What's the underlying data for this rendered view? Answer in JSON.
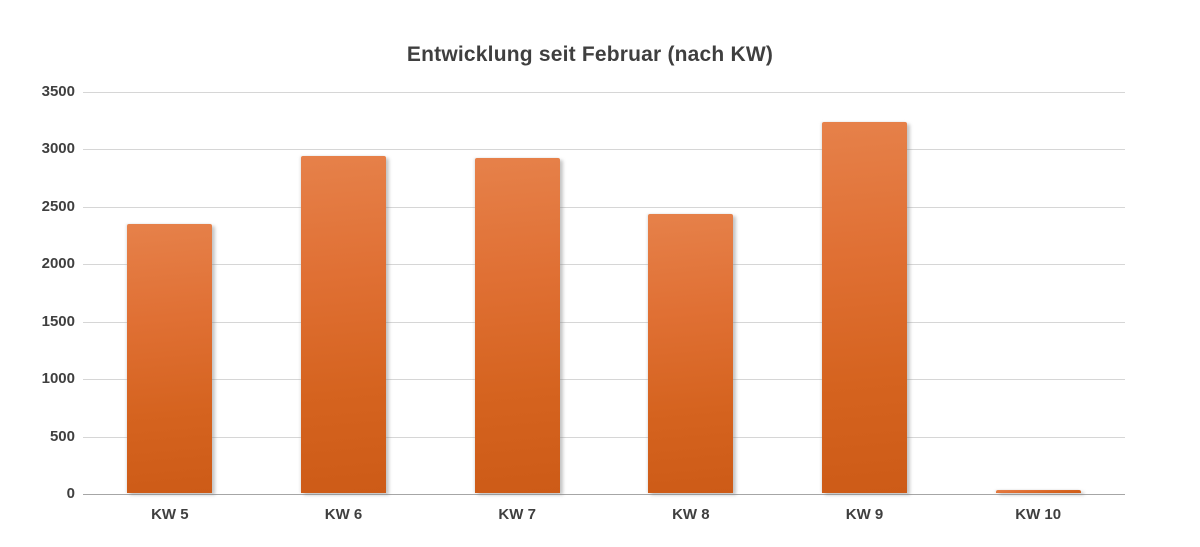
{
  "chart_data": {
    "type": "bar",
    "title": "Entwicklung seit Februar (nach KW)",
    "categories": [
      "KW 5",
      "KW 6",
      "KW 7",
      "KW 8",
      "KW 9",
      "KW 10"
    ],
    "values": [
      2340,
      2930,
      2920,
      2430,
      3230,
      30
    ],
    "xlabel": "",
    "ylabel": "",
    "ylim": [
      0,
      3500
    ],
    "yticks": [
      0,
      500,
      1000,
      1500,
      2000,
      2500,
      3000,
      3500
    ],
    "grid": true,
    "legend_position": "none",
    "colors": {
      "bar_gradient_top": "#e6814a",
      "bar_gradient_bottom": "#cd5b17",
      "gridline": "#d6d6d6",
      "axis_line": "#a6a6a6",
      "text": "#3f3f3f",
      "background": "#ffffff"
    }
  }
}
